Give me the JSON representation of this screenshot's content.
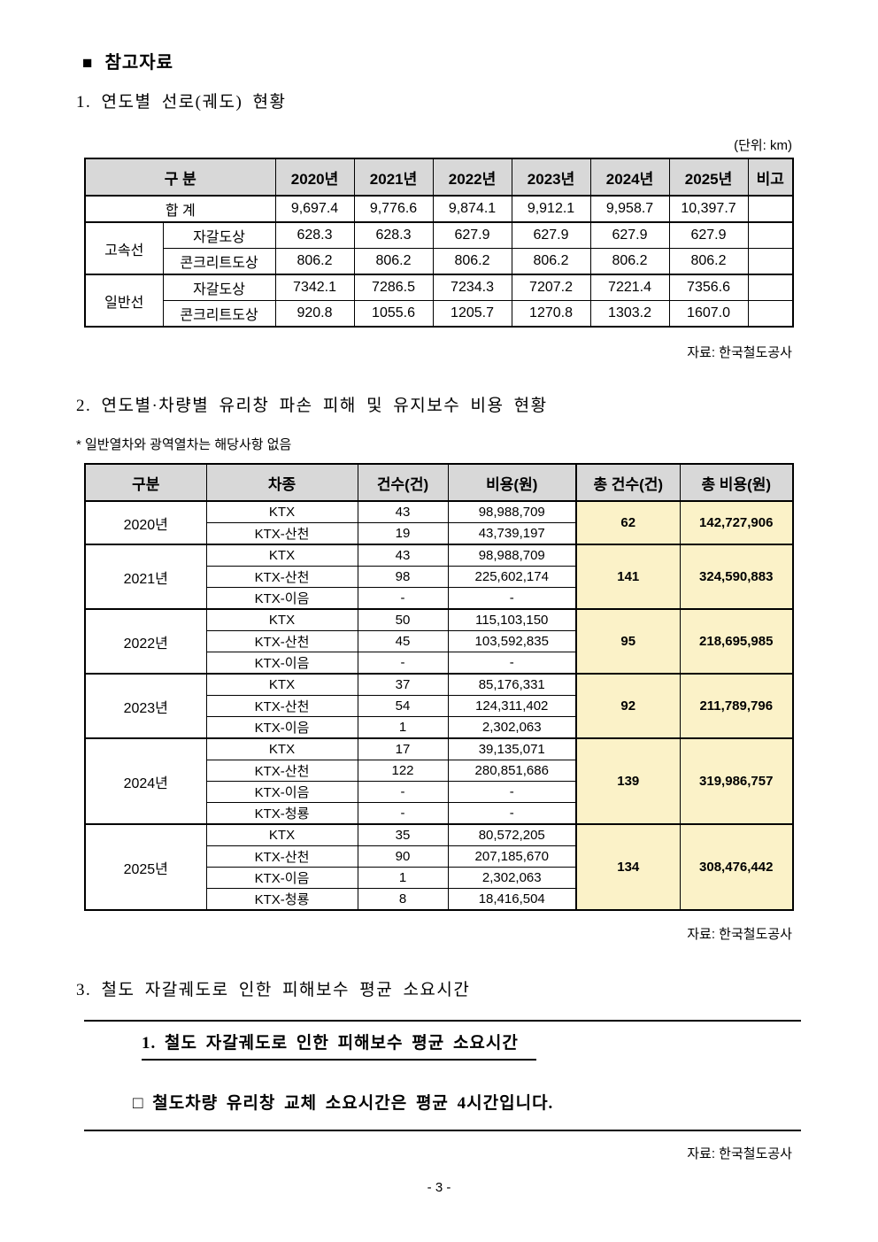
{
  "page": {
    "bullet": "■",
    "title": "참고자료",
    "page_number": "- 3 -"
  },
  "colors": {
    "header_bg": "#d8d8d8",
    "total_bg": "#fbf2c8"
  },
  "section1": {
    "heading": "1. 연도별 선로(궤도) 현황",
    "unit": "(단위: km)",
    "source": "자료: 한국철도공사",
    "table": {
      "headers": [
        "구 분",
        "2020년",
        "2021년",
        "2022년",
        "2023년",
        "2024년",
        "2025년",
        "비고"
      ],
      "total_row": {
        "label": "합 계",
        "values": [
          "9,697.4",
          "9,776.6",
          "9,874.1",
          "9,912.1",
          "9,958.7",
          "10,397.7"
        ]
      },
      "groups": [
        {
          "label": "고속선",
          "rows": [
            {
              "label": "자갈도상",
              "values": [
                "628.3",
                "628.3",
                "627.9",
                "627.9",
                "627.9",
                "627.9"
              ]
            },
            {
              "label": "콘크리트도상",
              "values": [
                "806.2",
                "806.2",
                "806.2",
                "806.2",
                "806.2",
                "806.2"
              ]
            }
          ]
        },
        {
          "label": "일반선",
          "rows": [
            {
              "label": "자갈도상",
              "values": [
                "7342.1",
                "7286.5",
                "7234.3",
                "7207.2",
                "7221.4",
                "7356.6"
              ]
            },
            {
              "label": "콘크리트도상",
              "values": [
                "920.8",
                "1055.6",
                "1205.7",
                "1270.8",
                "1303.2",
                "1607.0"
              ]
            }
          ]
        }
      ]
    }
  },
  "section2": {
    "heading": "2. 연도별·차량별 유리창 파손 피해 및 유지보수 비용 현황",
    "note": "* 일반열차와 광역열차는 해당사항 없음",
    "source": "자료: 한국철도공사",
    "table": {
      "headers": [
        "구분",
        "차종",
        "건수(건)",
        "비용(원)",
        "총 건수(건)",
        "총 비용(원)"
      ],
      "groups": [
        {
          "year": "2020년",
          "total_count": "62",
          "total_cost": "142,727,906",
          "rows": [
            {
              "type": "KTX",
              "count": "43",
              "cost": "98,988,709"
            },
            {
              "type": "KTX-산천",
              "count": "19",
              "cost": "43,739,197"
            }
          ]
        },
        {
          "year": "2021년",
          "total_count": "141",
          "total_cost": "324,590,883",
          "rows": [
            {
              "type": "KTX",
              "count": "43",
              "cost": "98,988,709"
            },
            {
              "type": "KTX-산천",
              "count": "98",
              "cost": "225,602,174"
            },
            {
              "type": "KTX-이음",
              "count": "-",
              "cost": "-"
            }
          ]
        },
        {
          "year": "2022년",
          "total_count": "95",
          "total_cost": "218,695,985",
          "rows": [
            {
              "type": "KTX",
              "count": "50",
              "cost": "115,103,150"
            },
            {
              "type": "KTX-산천",
              "count": "45",
              "cost": "103,592,835"
            },
            {
              "type": "KTX-이음",
              "count": "-",
              "cost": "-"
            }
          ]
        },
        {
          "year": "2023년",
          "total_count": "92",
          "total_cost": "211,789,796",
          "rows": [
            {
              "type": "KTX",
              "count": "37",
              "cost": "85,176,331"
            },
            {
              "type": "KTX-산천",
              "count": "54",
              "cost": "124,311,402"
            },
            {
              "type": "KTX-이음",
              "count": "1",
              "cost": "2,302,063"
            }
          ]
        },
        {
          "year": "2024년",
          "total_count": "139",
          "total_cost": "319,986,757",
          "rows": [
            {
              "type": "KTX",
              "count": "17",
              "cost": "39,135,071"
            },
            {
              "type": "KTX-산천",
              "count": "122",
              "cost": "280,851,686"
            },
            {
              "type": "KTX-이음",
              "count": "-",
              "cost": "-"
            },
            {
              "type": "KTX-청룡",
              "count": "-",
              "cost": "-"
            }
          ]
        },
        {
          "year": "2025년",
          "total_count": "134",
          "total_cost": "308,476,442",
          "rows": [
            {
              "type": "KTX",
              "count": "35",
              "cost": "80,572,205"
            },
            {
              "type": "KTX-산천",
              "count": "90",
              "cost": "207,185,670"
            },
            {
              "type": "KTX-이음",
              "count": "1",
              "cost": "2,302,063"
            },
            {
              "type": "KTX-청룡",
              "count": "8",
              "cost": "18,416,504"
            }
          ]
        }
      ]
    }
  },
  "section3": {
    "heading": "3. 철도 자갈궤도로 인한 피해보수 평균 소요시간",
    "box_title": "1. 철도 자갈궤도로 인한 피해보수 평균 소요시간",
    "box_body": "□ 철도차량 유리창 교체 소요시간은 평균 4시간입니다.",
    "source": "자료: 한국철도공사"
  }
}
